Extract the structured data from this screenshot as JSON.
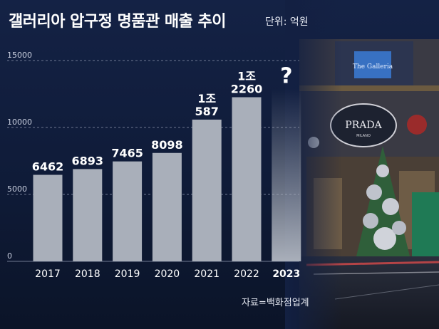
{
  "title": "갤러리아 압구정 명품관 매출 추이",
  "unit": "단위: 억원",
  "source": "자료=백화점업계",
  "store_sign": "PRADA",
  "store_sign_sub": "MILANO",
  "building_sign": "The Galleria",
  "chart_data": {
    "type": "bar",
    "categories": [
      "2017",
      "2018",
      "2019",
      "2020",
      "2021",
      "2022",
      "2023"
    ],
    "values": [
      6462,
      6893,
      7465,
      8098,
      10587,
      12260,
      null
    ],
    "value_labels": [
      [
        "6462"
      ],
      [
        "6893"
      ],
      [
        "7465"
      ],
      [
        "8098"
      ],
      [
        "1조",
        "587"
      ],
      [
        "1조",
        "2260"
      ],
      [
        "?"
      ]
    ],
    "ylim": [
      0,
      15000
    ],
    "yticks": [
      0,
      5000,
      10000,
      15000
    ],
    "grid": true,
    "bar_color": "#a9afba",
    "highlight_category": "2023"
  }
}
